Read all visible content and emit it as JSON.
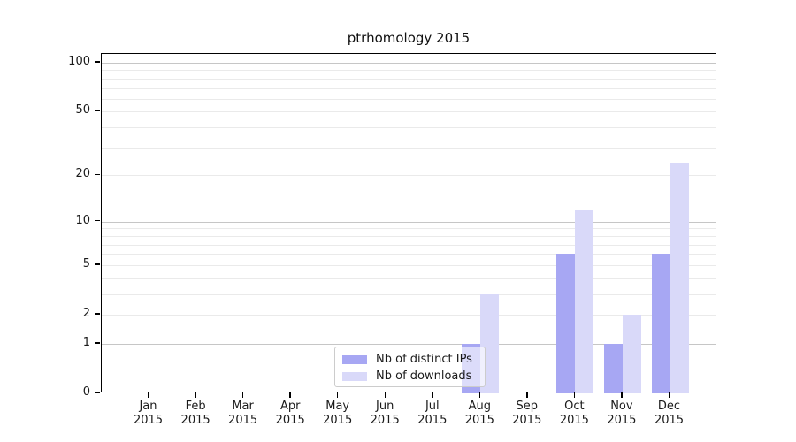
{
  "chart_data": {
    "type": "bar",
    "title": "ptrhomology 2015",
    "categories": [
      "Jan",
      "Feb",
      "Mar",
      "Apr",
      "May",
      "Jun",
      "Jul",
      "Aug",
      "Sep",
      "Oct",
      "Nov",
      "Dec"
    ],
    "year": "2015",
    "series": [
      {
        "name": "Nb of distinct IPs",
        "color": "#a7a7f3",
        "values": [
          0,
          0,
          0,
          0,
          0,
          0,
          0,
          1,
          0,
          6,
          1,
          6
        ]
      },
      {
        "name": "Nb of downloads",
        "color": "#d9d9f9",
        "values": [
          0,
          0,
          0,
          0,
          0,
          0,
          0,
          3,
          0,
          12,
          2,
          24
        ]
      }
    ],
    "yscale": "log1p",
    "ylim": [
      0,
      113
    ],
    "y_ticks": [
      0,
      1,
      2,
      5,
      10,
      20,
      50,
      100
    ],
    "y_gridlines_major": [
      1,
      10,
      100
    ],
    "y_gridlines_minor": [
      2,
      3,
      4,
      5,
      6,
      7,
      8,
      9,
      20,
      30,
      40,
      50,
      60,
      70,
      80,
      90
    ],
    "legend_position": "lower-center",
    "grid": true
  },
  "colors": {
    "bar_distinct_ips": "#a7a7f3",
    "bar_downloads": "#d9d9f9",
    "grid_major": "#c6c6c6",
    "grid_minor": "#eaeaea",
    "axis": "#000000"
  }
}
